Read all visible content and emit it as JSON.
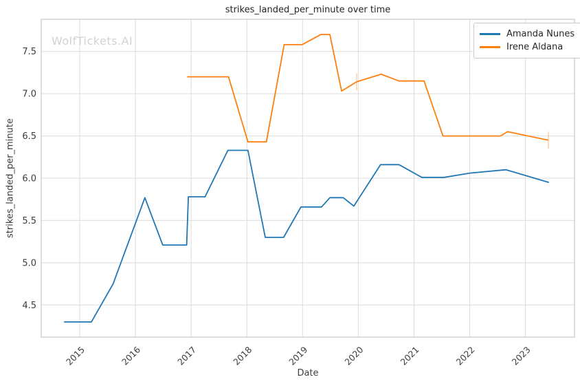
{
  "chart_data": {
    "type": "line",
    "title": "strikes_landed_per_minute over time",
    "xlabel": "Date",
    "ylabel": "strikes_landed_per_minute",
    "watermark": "WolfTickets.AI",
    "x_unit": "decimal_year",
    "xlim": [
      2014.31,
      2023.88
    ],
    "ylim": [
      4.12,
      7.88
    ],
    "x_ticks": [
      2015,
      2016,
      2017,
      2018,
      2019,
      2020,
      2021,
      2022,
      2023
    ],
    "y_ticks": [
      4.5,
      5.0,
      5.5,
      6.0,
      6.5,
      7.0,
      7.5
    ],
    "grid": true,
    "legend_position": "upper right",
    "series": [
      {
        "name": "Amanda Nunes",
        "color": "#1f77b4",
        "points": [
          [
            2014.72,
            4.3
          ],
          [
            2015.21,
            4.3
          ],
          [
            2015.6,
            4.75
          ],
          [
            2016.17,
            5.77
          ],
          [
            2016.49,
            5.21
          ],
          [
            2016.92,
            5.21
          ],
          [
            2016.95,
            5.78
          ],
          [
            2017.25,
            5.78
          ],
          [
            2017.66,
            6.33
          ],
          [
            2018.02,
            6.33
          ],
          [
            2018.33,
            5.3
          ],
          [
            2018.66,
            5.3
          ],
          [
            2018.97,
            5.66
          ],
          [
            2019.34,
            5.66
          ],
          [
            2019.49,
            5.77
          ],
          [
            2019.73,
            5.77
          ],
          [
            2019.92,
            5.67
          ],
          [
            2020.4,
            6.16
          ],
          [
            2020.73,
            6.16
          ],
          [
            2021.14,
            6.01
          ],
          [
            2021.54,
            6.01
          ],
          [
            2022.0,
            6.06
          ],
          [
            2022.65,
            6.1
          ],
          [
            2023.42,
            5.95
          ]
        ]
      },
      {
        "name": "Irene Aldana",
        "color": "#ff7f0e",
        "points": [
          [
            2016.93,
            7.2
          ],
          [
            2017.67,
            7.2
          ],
          [
            2018.02,
            6.43
          ],
          [
            2018.35,
            6.43
          ],
          [
            2018.67,
            7.58
          ],
          [
            2018.99,
            7.58
          ],
          [
            2019.33,
            7.7
          ],
          [
            2019.49,
            7.7
          ],
          [
            2019.7,
            7.03
          ],
          [
            2019.97,
            7.14
          ],
          [
            2020.41,
            7.23
          ],
          [
            2020.73,
            7.15
          ],
          [
            2021.18,
            7.15
          ],
          [
            2021.52,
            6.5
          ],
          [
            2022.55,
            6.5
          ],
          [
            2022.68,
            6.55
          ],
          [
            2023.41,
            6.45
          ]
        ]
      }
    ],
    "error_bars": [
      {
        "series": "Irene Aldana",
        "x": 2019.97,
        "y_low": 7.04,
        "y_high": 7.24
      },
      {
        "series": "Irene Aldana",
        "x": 2023.41,
        "y_low": 6.35,
        "y_high": 6.55
      }
    ]
  },
  "style_colors": {
    "grid": "#dcdcdc",
    "spine": "#c9c9c9",
    "tick_text": "#3d3d3d",
    "title_text": "#262626",
    "watermark_text": "#d2d2d2",
    "error_bar_opacity": "0.35"
  }
}
